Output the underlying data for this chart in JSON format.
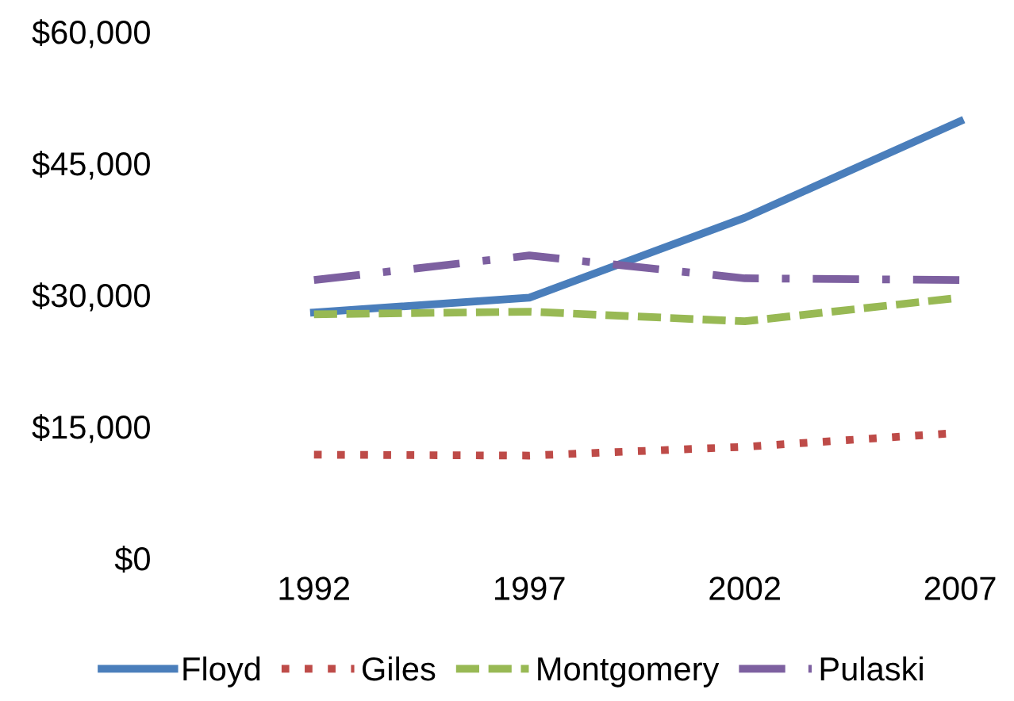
{
  "chart_data": {
    "type": "line",
    "categories": [
      "1992",
      "1997",
      "2002",
      "2007"
    ],
    "series": [
      {
        "name": "Floyd",
        "color": "#4a7ebb",
        "line_style": "solid",
        "values": [
          28000,
          29700,
          38800,
          49800
        ]
      },
      {
        "name": "Giles",
        "color": "#be4b48",
        "line_style": "dotted",
        "values": [
          11800,
          11700,
          12700,
          14300
        ]
      },
      {
        "name": "Montgomery",
        "color": "#98b954",
        "line_style": "dashed",
        "values": [
          27800,
          28100,
          27000,
          29700
        ]
      },
      {
        "name": "Pulaski",
        "color": "#7d60a0",
        "line_style": "dashdot",
        "values": [
          31700,
          34500,
          31900,
          31700
        ]
      }
    ],
    "ylim": [
      0,
      60000
    ],
    "yticks": [
      {
        "value": 0,
        "label": "$0"
      },
      {
        "value": 15000,
        "label": "$15,000"
      },
      {
        "value": 30000,
        "label": "$30,000"
      },
      {
        "value": 45000,
        "label": "$45,000"
      },
      {
        "value": 60000,
        "label": "$60,000"
      }
    ],
    "grid": false,
    "legend": "bottom",
    "marker": "none"
  }
}
